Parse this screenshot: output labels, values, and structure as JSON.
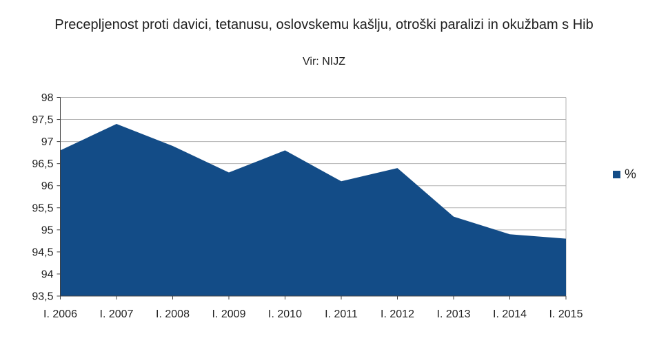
{
  "title": "Precepljenost proti davici, tetanusu, oslovskemu kašlju, otroški paralizi in okužbam s Hib",
  "subtitle": "Vir: NIJZ",
  "legend": {
    "label": "%",
    "swatch_color": "#134c87"
  },
  "chart_data": {
    "type": "area",
    "title": "Precepljenost proti davici, tetanusu, oslovskemu kašlju, otroški paralizi in okužbam s Hib",
    "subtitle": "Vir: NIJZ",
    "categories": [
      "I. 2006",
      "I. 2007",
      "I. 2008",
      "I. 2009",
      "I. 2010",
      "I. 2011",
      "I. 2012",
      "I. 2013",
      "I. 2014",
      "I. 2015"
    ],
    "series": [
      {
        "name": "%",
        "values": [
          96.8,
          97.4,
          96.9,
          96.3,
          96.8,
          96.1,
          96.4,
          95.3,
          94.9,
          94.8
        ]
      }
    ],
    "ylim": [
      93.5,
      98
    ],
    "ytick_step": 0.5,
    "ytick_labels": [
      "98",
      "97,5",
      "97",
      "96,5",
      "96",
      "95,5",
      "95",
      "94,5",
      "94",
      "93,5"
    ],
    "grid": true,
    "legend_position": "right",
    "colors": {
      "area_fill": "#134c87",
      "grid_line": "#b3b3b3",
      "axis_line": "#404040",
      "text": "#1f1f1f"
    }
  }
}
